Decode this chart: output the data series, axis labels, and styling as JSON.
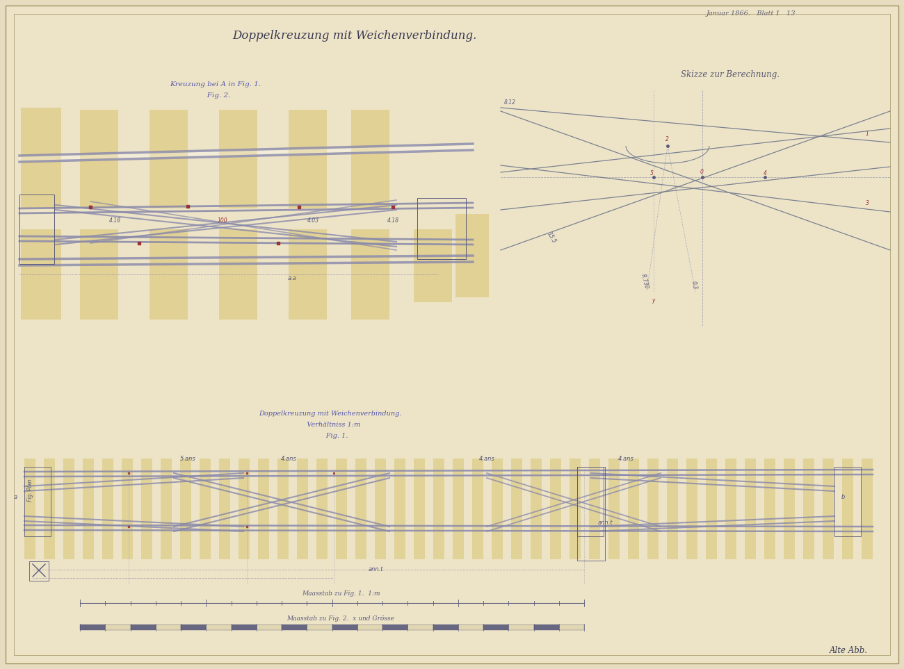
{
  "bg_color": "#e8dcc0",
  "paper_color": "#ede4c8",
  "border_color": "#b8a870",
  "title": "Doppelkreuzung mit Weichenverbindung.",
  "top_right_text": "Januar 1866.   Blatt 1   13",
  "fig2_label": "Kreuzung bei A in Fig. 1.\n   Fig. 2.",
  "fig1_label": "Doppelkreuzung mit Weichenverbindung.\n   Verhältniss 1:m\n      Fig. 1.",
  "sketch_label": "Skizze zur Berechnung.",
  "scale_label1": "Maasstab zu Fig. 1.  1:m",
  "scale_label2": "Maasstab zu Fig. 2.  x und Grösse",
  "bottom_right": "Alte Abb.",
  "line_color": "#5a5a7a",
  "track_color": "#8888aa",
  "yellow_rect_color": "#e0cf90",
  "dashed_line_color": "#9090aa",
  "red_mark_color": "#993333",
  "sketch_line_color": "#7a8090"
}
